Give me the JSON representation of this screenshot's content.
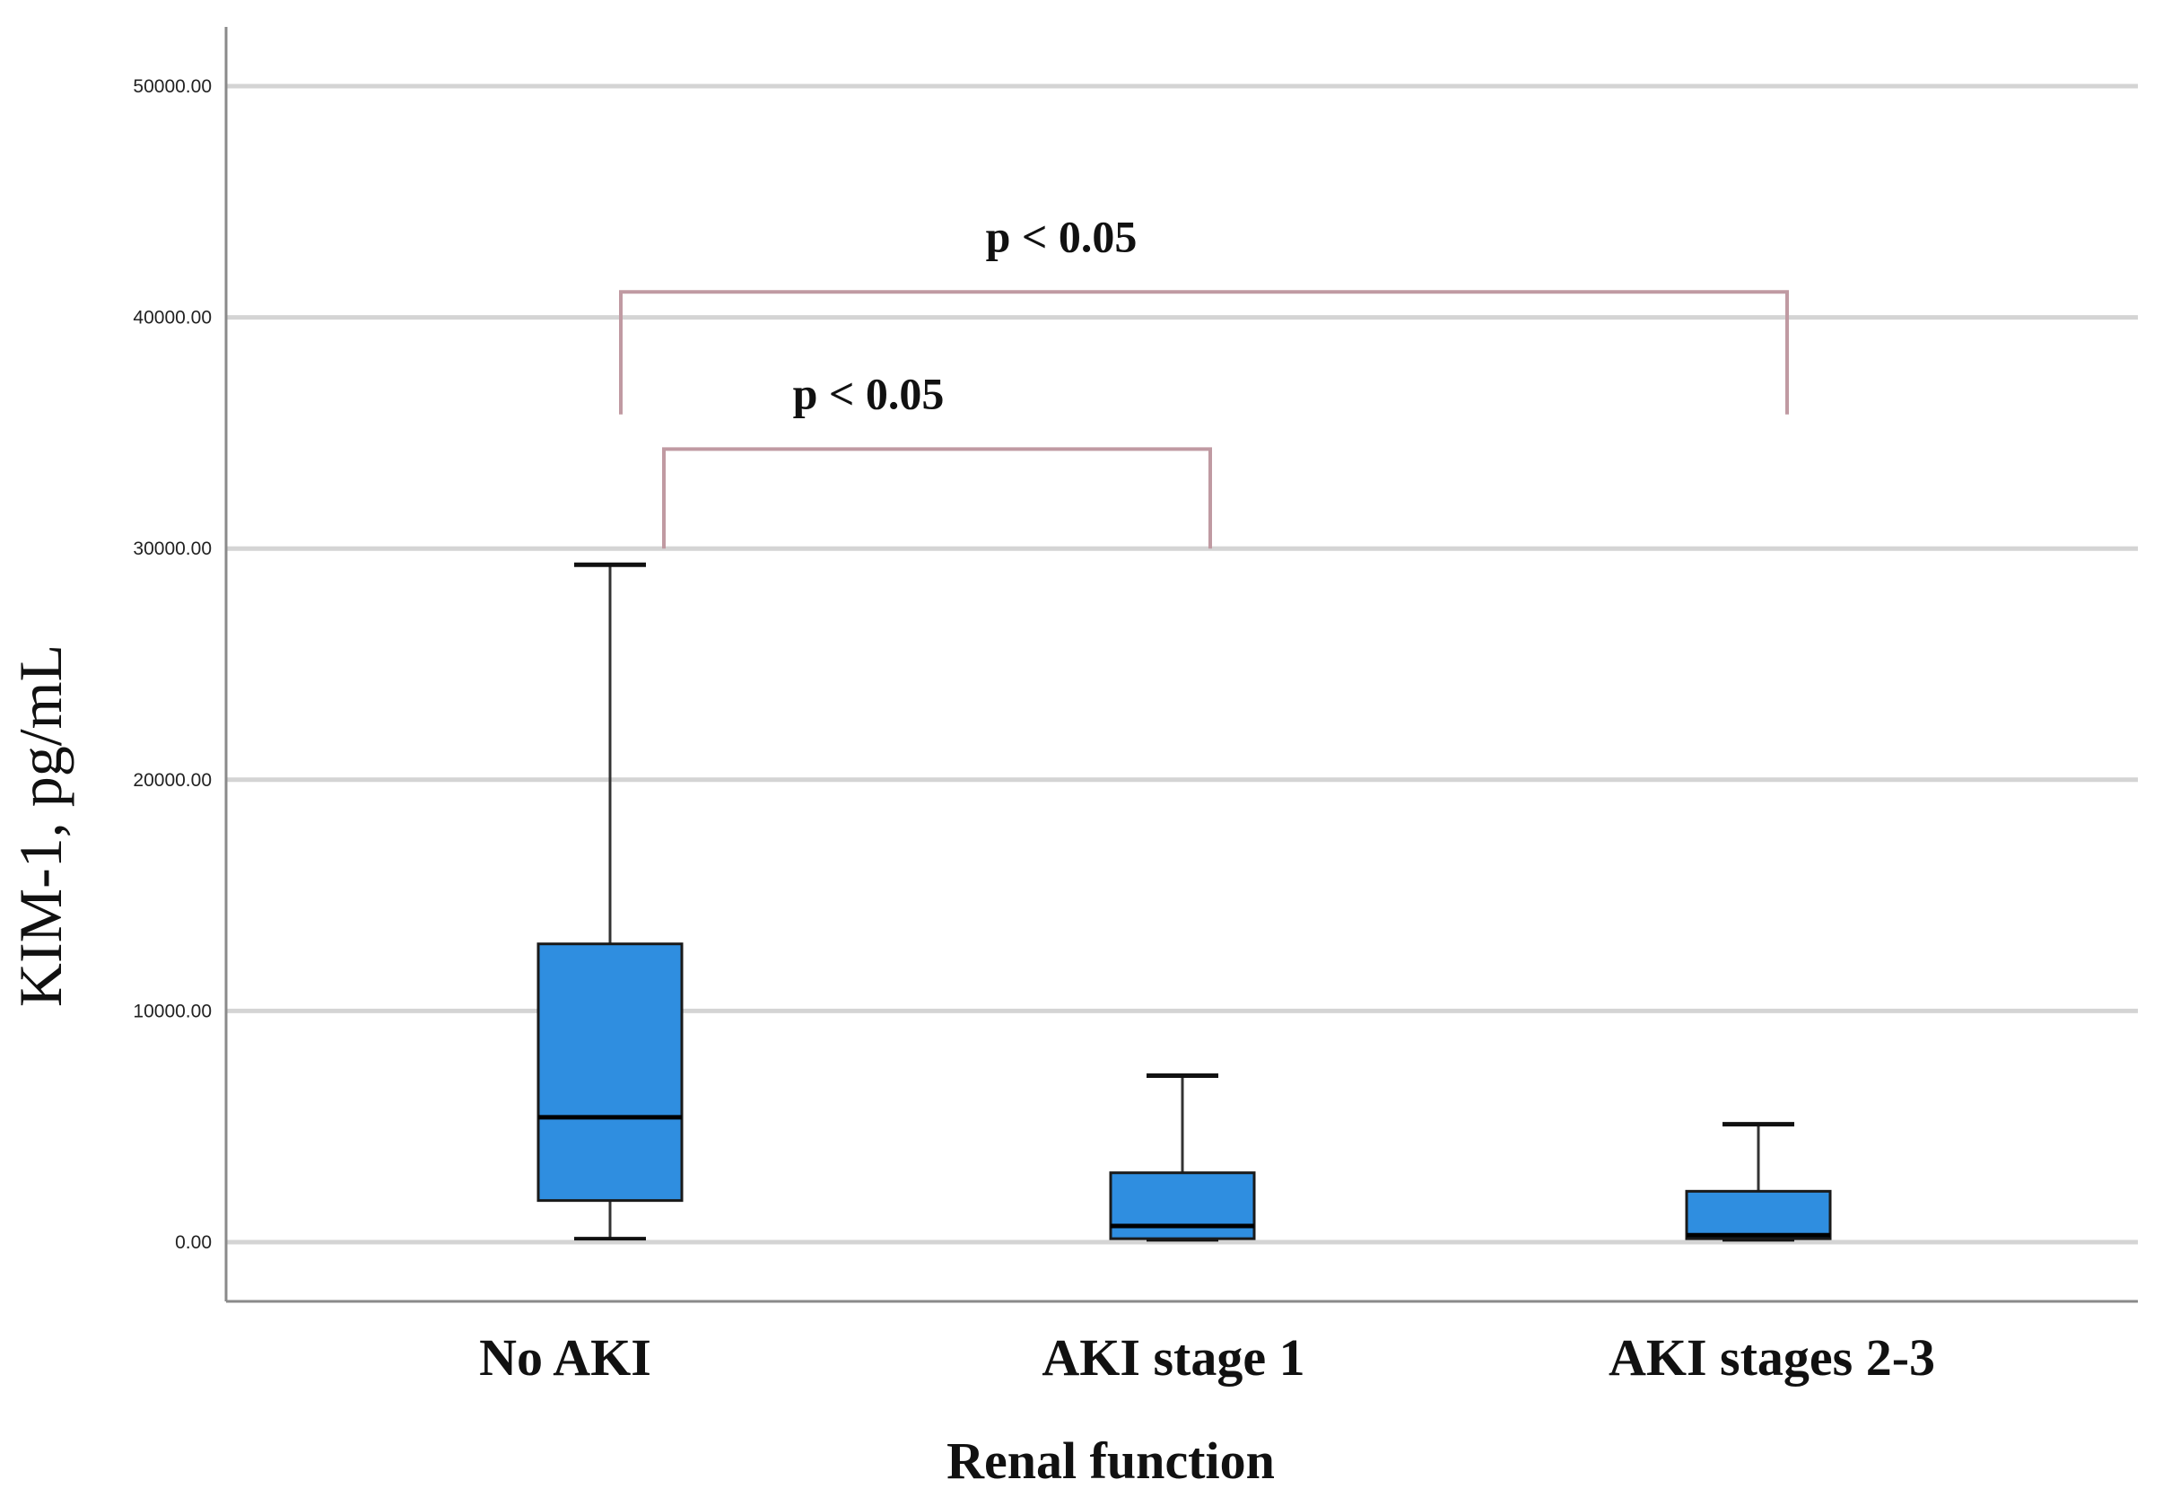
{
  "chart_data": {
    "type": "box",
    "xlabel": "Renal function",
    "ylabel": "KIM-1, pg/mL",
    "ylim": [
      0,
      50000
    ],
    "yticks": [
      "0.00",
      "10000.00",
      "20000.00",
      "30000.00",
      "40000.00",
      "50000.00"
    ],
    "grid": true,
    "categories": [
      "No AKI",
      "AKI stage 1",
      "AKI stages 2-3"
    ],
    "boxes": [
      {
        "category": "No AKI",
        "min": 150,
        "q1": 1800,
        "median": 5400,
        "q3": 12900,
        "max": 29300
      },
      {
        "category": "AKI stage 1",
        "min": 100,
        "q1": 150,
        "median": 700,
        "q3": 3000,
        "max": 7200
      },
      {
        "category": "AKI stages 2-3",
        "min": 100,
        "q1": 150,
        "median": 300,
        "q3": 2200,
        "max": 5100
      }
    ],
    "annotations": [
      {
        "text": "p < 0.05",
        "from": "No AKI",
        "to": "AKI stage 1",
        "bracket_y": 34300,
        "leg_bottom": 30000
      },
      {
        "text": "p < 0.05",
        "from": "No AKI",
        "to": "AKI stages 2-3",
        "bracket_y": 41100,
        "leg_bottom": 35800
      }
    ],
    "colors": {
      "box_fill": "#2f8ee0",
      "box_stroke": "#1a1a1a",
      "grid": "#d4d4d4",
      "bracket": "#c09aa2",
      "axis": "#8a8a8a"
    }
  }
}
